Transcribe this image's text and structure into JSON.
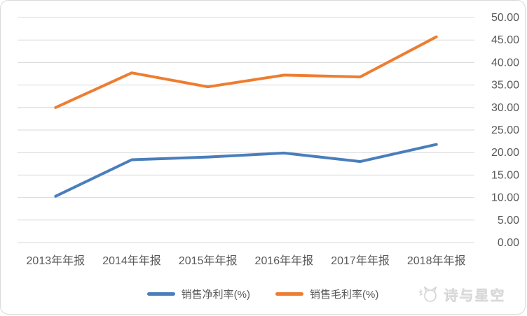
{
  "chart_data": {
    "type": "line",
    "categories": [
      "2013年年报",
      "2014年年报",
      "2015年年报",
      "2016年年报",
      "2017年年报",
      "2018年年报"
    ],
    "series": [
      {
        "name": "销售净利率(%)",
        "color": "#4A7EBB",
        "values": [
          10.3,
          18.4,
          19.0,
          19.9,
          18.0,
          21.8
        ]
      },
      {
        "name": "销售毛利率(%)",
        "color": "#ED7D31",
        "values": [
          30.0,
          37.7,
          34.6,
          37.2,
          36.8,
          45.7
        ]
      }
    ],
    "title": "",
    "xlabel": "",
    "ylabel": "",
    "ylim": [
      0,
      50
    ],
    "ytick_step": 5,
    "ytick_labels": [
      "0.00",
      "5.00",
      "10.00",
      "15.00",
      "20.00",
      "25.00",
      "30.00",
      "35.00",
      "40.00",
      "45.00",
      "50.00"
    ],
    "y_axis_side": "right",
    "grid": true,
    "legend_position": "bottom"
  },
  "watermark": {
    "text": "诗与星空",
    "icon": "cat-logo-icon"
  },
  "colors": {
    "background": "#FFFFFF",
    "gridline": "#D9D9D9",
    "axis_text": "#595959",
    "frame_border": "#D9D9D9",
    "watermark_text": "#DCDCDC",
    "series_net_margin": "#4A7EBB",
    "series_gross_margin": "#ED7D31"
  }
}
